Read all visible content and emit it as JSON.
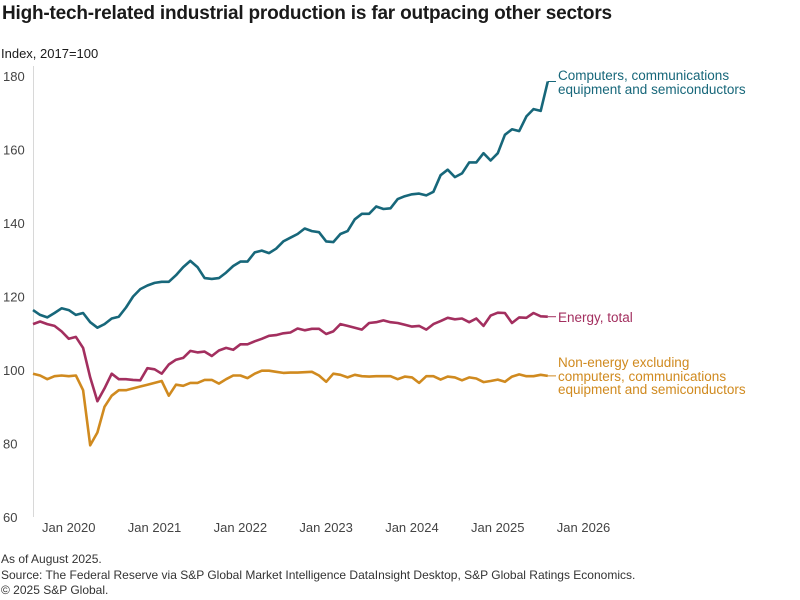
{
  "title": "High-tech-related industrial production is far outpacing other sectors",
  "footer": {
    "note": "As of August 2025.",
    "source": "Source: The Federal Reserve via S&P Global Market Intelligence DataInsight Desktop, S&P Global Ratings Economics.",
    "copyright": "© 2025 S&P Global."
  },
  "chart_data": {
    "type": "line",
    "ylabel": "Index, 2017=100",
    "ylim": [
      60,
      180
    ],
    "yticks": [
      "60",
      "80",
      "100",
      "120",
      "140",
      "160",
      "180"
    ],
    "xticks": [
      "Jan 2020",
      "Jan 2021",
      "Jan 2022",
      "Jan 2023",
      "Jan 2024",
      "Jan 2025",
      "Jan 2026"
    ],
    "grid": false,
    "x": [
      "2019-08",
      "2019-09",
      "2019-10",
      "2019-11",
      "2019-12",
      "2020-01",
      "2020-02",
      "2020-03",
      "2020-04",
      "2020-05",
      "2020-06",
      "2020-07",
      "2020-08",
      "2020-09",
      "2020-10",
      "2020-11",
      "2020-12",
      "2021-01",
      "2021-02",
      "2021-03",
      "2021-04",
      "2021-05",
      "2021-06",
      "2021-07",
      "2021-08",
      "2021-09",
      "2021-10",
      "2021-11",
      "2021-12",
      "2022-01",
      "2022-02",
      "2022-03",
      "2022-04",
      "2022-05",
      "2022-06",
      "2022-07",
      "2022-08",
      "2022-09",
      "2022-10",
      "2022-11",
      "2022-12",
      "2023-01",
      "2023-02",
      "2023-03",
      "2023-04",
      "2023-05",
      "2023-06",
      "2023-07",
      "2023-08",
      "2023-09",
      "2023-10",
      "2023-11",
      "2023-12",
      "2024-01",
      "2024-02",
      "2024-03",
      "2024-04",
      "2024-05",
      "2024-06",
      "2024-07",
      "2024-08",
      "2024-09",
      "2024-10",
      "2024-11",
      "2024-12",
      "2025-01",
      "2025-02",
      "2025-03",
      "2025-04",
      "2025-05",
      "2025-06",
      "2025-07",
      "2025-08"
    ],
    "series": [
      {
        "name": "Computers, communications equipment and semiconductors",
        "label_lines": [
          "Computers, communications",
          "equipment and semiconductors"
        ],
        "color": "#17677a",
        "values": [
          116.3,
          115,
          114.3,
          115.5,
          116.8,
          116.3,
          115,
          115.5,
          113,
          111.5,
          112.5,
          114,
          114.5,
          117,
          120,
          122,
          123,
          123.7,
          124,
          124,
          125.8,
          128,
          129.7,
          128,
          125,
          124.8,
          125,
          126.5,
          128.3,
          129.5,
          129.5,
          132,
          132.5,
          131.8,
          133,
          135,
          136,
          137,
          138.5,
          137.8,
          137.5,
          135,
          134.8,
          137,
          137.8,
          141,
          142.5,
          142.5,
          144.5,
          143.8,
          144,
          146.5,
          147.3,
          147.8,
          148,
          147.5,
          148.5,
          153,
          154.5,
          152.5,
          153.5,
          156.5,
          156.5,
          159,
          157,
          159,
          164,
          165.5,
          165,
          169,
          171,
          170.5,
          178.5
        ]
      },
      {
        "name": "Energy, total",
        "label_lines": [
          "Energy, total"
        ],
        "color": "#a32f5f",
        "values": [
          112.5,
          113.2,
          112.5,
          112,
          110.5,
          108.5,
          109,
          106,
          98,
          91.5,
          95,
          99,
          97.5,
          97.5,
          97.3,
          97.2,
          100.5,
          100.2,
          99,
          101.5,
          102.8,
          103.3,
          105.2,
          104.8,
          105,
          103.8,
          105.3,
          106,
          105.5,
          107,
          107,
          107.8,
          108.5,
          109.3,
          109.5,
          110,
          110.2,
          111.3,
          110.8,
          111.2,
          111.2,
          109.8,
          110.5,
          112.5,
          112,
          111.5,
          111,
          112.8,
          113,
          113.5,
          113,
          112.8,
          112.3,
          111.8,
          112,
          111,
          112.5,
          113.3,
          114.2,
          113.8,
          114,
          113,
          114,
          112,
          114.8,
          115.6,
          115.5,
          112.8,
          114.3,
          114.2,
          115.5,
          114.6,
          114.5
        ]
      },
      {
        "name": "Non-energy excluding computers, communications equipment and semiconductors",
        "label_lines": [
          "Non-energy excluding",
          "computers, communications",
          "equipment and semiconductors"
        ],
        "color": "#d08a1f",
        "values": [
          99,
          98.5,
          97.5,
          98.3,
          98.5,
          98.3,
          98.5,
          94.5,
          79.5,
          83,
          90,
          93,
          94.5,
          94.5,
          95,
          95.5,
          96,
          96.5,
          97,
          93,
          96,
          95.7,
          96.5,
          96.5,
          97.3,
          97.3,
          96.3,
          97.5,
          98.5,
          98.5,
          97.8,
          99,
          99.8,
          99.8,
          99.5,
          99.2,
          99.3,
          99.3,
          99.4,
          99.5,
          98.5,
          96.8,
          99,
          98.7,
          98,
          98.7,
          98.3,
          98.2,
          98.3,
          98.3,
          98.3,
          97.5,
          98.2,
          98,
          96.5,
          98.3,
          98.3,
          97.4,
          98.2,
          98,
          97.2,
          98,
          97.7,
          96.7,
          97,
          97.4,
          96.8,
          98.2,
          98.8,
          98.3,
          98.3,
          98.7,
          98.4
        ]
      }
    ]
  }
}
